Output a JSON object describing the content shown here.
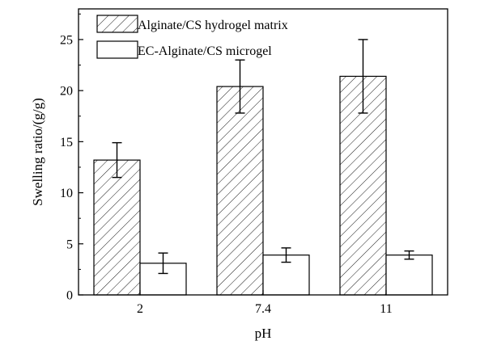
{
  "chart_data": {
    "type": "bar",
    "xlabel": "pH",
    "ylabel": "Swelling ratio/(g/g)",
    "categories": [
      "2",
      "7.4",
      "11"
    ],
    "ylim": [
      0,
      28
    ],
    "yticks": [
      0,
      5,
      10,
      15,
      20,
      25
    ],
    "grid": false,
    "legend_position": "top-left",
    "series": [
      {
        "name": "Alginate/CS hydrogel matrix",
        "pattern": "hatched",
        "values": [
          13.2,
          20.4,
          21.4
        ],
        "errors": [
          1.7,
          2.6,
          3.6
        ]
      },
      {
        "name": "EC-Alginate/CS microgel",
        "pattern": "empty",
        "values": [
          3.1,
          3.9,
          3.9
        ],
        "errors": [
          1.0,
          0.7,
          0.4
        ]
      }
    ]
  }
}
